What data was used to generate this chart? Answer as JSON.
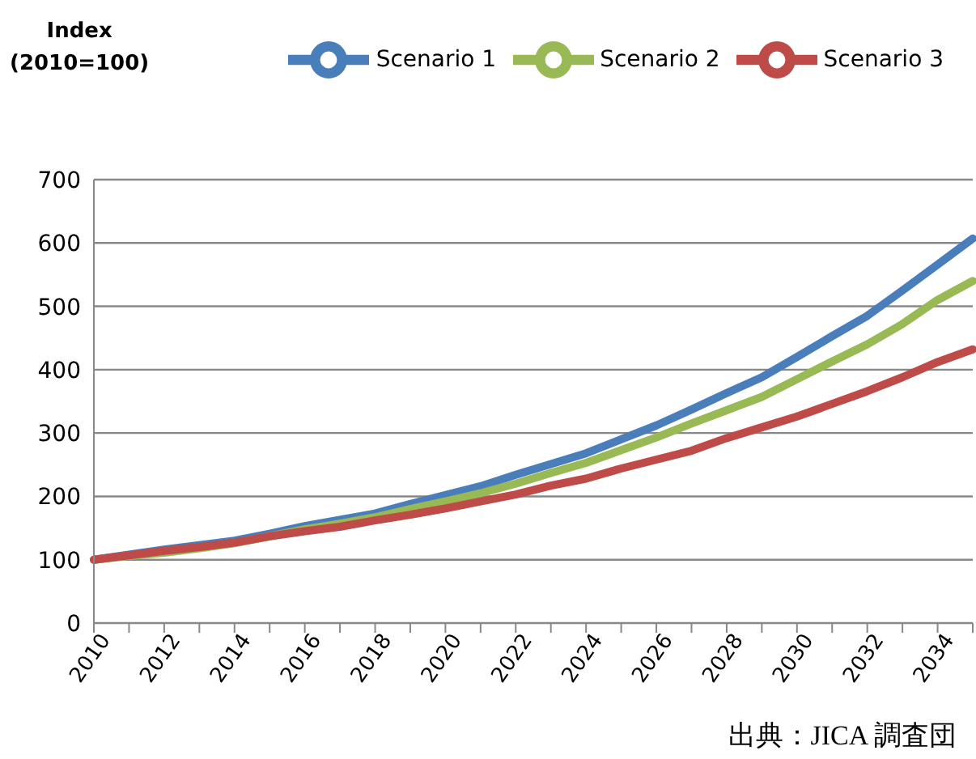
{
  "chart_data": {
    "type": "line",
    "ylabel": "Index\n(2010=100)",
    "categories": [
      "2010",
      null,
      "2012",
      null,
      "2014",
      null,
      "2016",
      null,
      "2018",
      null,
      "2020",
      null,
      "2022",
      null,
      "2024",
      null,
      "2026",
      null,
      "2028",
      null,
      "2030",
      null,
      "2032",
      null,
      "2034",
      null
    ],
    "series": [
      {
        "name": "Scenario 1",
        "color": "#4a7ebb",
        "values": [
          100,
          108,
          116,
          123,
          130,
          141,
          153,
          163,
          173,
          188,
          202,
          216,
          234,
          251,
          268,
          290,
          312,
          337,
          363,
          388,
          420,
          453,
          485,
          525,
          566,
          607
        ]
      },
      {
        "name": "Scenario 2",
        "color": "#98b954",
        "values": [
          100,
          106,
          111,
          118,
          126,
          137,
          148,
          157,
          167,
          180,
          192,
          205,
          220,
          237,
          253,
          273,
          293,
          315,
          336,
          357,
          385,
          413,
          440,
          472,
          510,
          540
        ]
      },
      {
        "name": "Scenario 3",
        "color": "#be4b48",
        "values": [
          100,
          107,
          114,
          120,
          127,
          137,
          145,
          152,
          162,
          171,
          181,
          192,
          203,
          217,
          228,
          244,
          258,
          272,
          292,
          309,
          326,
          346,
          366,
          388,
          412,
          432
        ]
      }
    ],
    "ylim": [
      0,
      700
    ],
    "yticks": [
      0,
      100,
      200,
      300,
      400,
      500,
      600,
      700
    ],
    "grid": "y",
    "legend": "top right",
    "marker": "none",
    "line_style": "solid",
    "annotations": [
      "出典：JICA 調査団"
    ]
  }
}
